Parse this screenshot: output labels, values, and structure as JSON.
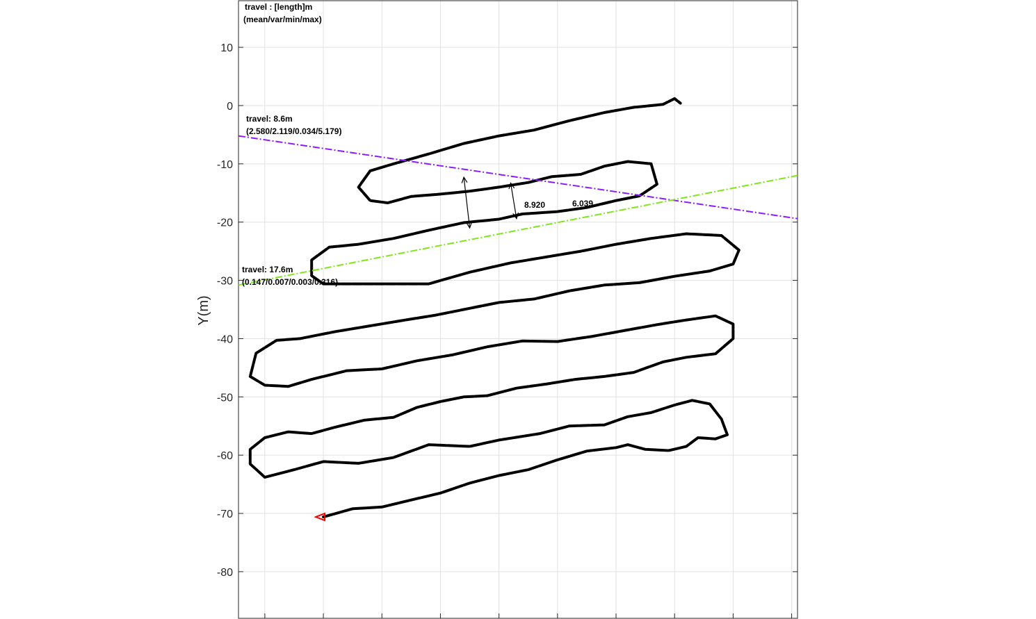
{
  "chart_data": {
    "type": "line",
    "title": "",
    "xlabel": "",
    "ylabel": "Y(m)",
    "xlim": [
      -4.5,
      91
    ],
    "ylim": [
      -88,
      18
    ],
    "yticks": [
      10,
      0,
      -10,
      -20,
      -30,
      -40,
      -50,
      -60,
      -70,
      -80
    ],
    "xgrid": [
      0,
      10,
      20,
      30,
      40,
      50,
      60,
      70,
      80,
      90
    ],
    "grid": true,
    "legend": {
      "line1": "travel : [length]m",
      "line2": "(mean/var/min/max)",
      "position": "top-left"
    },
    "series": [
      {
        "color": "#000000",
        "style": "dotted-thick",
        "points": [
          [
            10,
            -70.6
          ],
          [
            15,
            -69.2
          ],
          [
            20,
            -68.9
          ],
          [
            25,
            -67.7
          ],
          [
            30,
            -66.5
          ],
          [
            35,
            -64.8
          ],
          [
            40,
            -63.5
          ],
          [
            45,
            -62.5
          ],
          [
            50,
            -60.8
          ],
          [
            55,
            -59.3
          ],
          [
            60,
            -58.7
          ],
          [
            62,
            -58.2
          ],
          [
            65,
            -59.0
          ],
          [
            69,
            -59.2
          ],
          [
            72,
            -58.5
          ],
          [
            74,
            -57.0
          ],
          [
            77,
            -57.2
          ],
          [
            79,
            -56.5
          ],
          [
            78,
            -53.8
          ],
          [
            76,
            -51.2
          ],
          [
            73,
            -50.6
          ],
          [
            70,
            -51.4
          ],
          [
            66,
            -52.7
          ],
          [
            62,
            -53.4
          ],
          [
            58,
            -54.8
          ],
          [
            52,
            -55.0
          ],
          [
            47,
            -56.3
          ],
          [
            40,
            -57.4
          ],
          [
            35,
            -58.5
          ],
          [
            28,
            -58.2
          ],
          [
            22,
            -60.4
          ],
          [
            16,
            -61.4
          ],
          [
            10,
            -61.1
          ],
          [
            5,
            -62.5
          ],
          [
            0,
            -63.8
          ],
          [
            -2.5,
            -61.5
          ],
          [
            -2.5,
            -59.0
          ],
          [
            0,
            -57.0
          ],
          [
            4,
            -56.0
          ],
          [
            8,
            -56.3
          ],
          [
            12,
            -55.2
          ],
          [
            17,
            -54.0
          ],
          [
            22,
            -53.5
          ],
          [
            26,
            -51.8
          ],
          [
            30,
            -50.8
          ],
          [
            34,
            -50.0
          ],
          [
            38,
            -49.8
          ],
          [
            43,
            -48.5
          ],
          [
            48,
            -47.8
          ],
          [
            53,
            -47.0
          ],
          [
            58,
            -46.5
          ],
          [
            63,
            -45.8
          ],
          [
            68,
            -44.0
          ],
          [
            72,
            -43.2
          ],
          [
            77,
            -42.6
          ],
          [
            80,
            -40.0
          ],
          [
            80,
            -37.5
          ],
          [
            77,
            -36.1
          ],
          [
            72,
            -36.8
          ],
          [
            67,
            -37.6
          ],
          [
            62,
            -38.5
          ],
          [
            56,
            -39.6
          ],
          [
            50,
            -40.5
          ],
          [
            44,
            -40.4
          ],
          [
            38,
            -41.4
          ],
          [
            32,
            -42.8
          ],
          [
            26,
            -43.8
          ],
          [
            20,
            -45.2
          ],
          [
            14,
            -45.5
          ],
          [
            8,
            -47.0
          ],
          [
            4,
            -48.2
          ],
          [
            0,
            -48.0
          ],
          [
            -2.5,
            -46.5
          ],
          [
            -1.5,
            -42.5
          ],
          [
            2,
            -40.3
          ],
          [
            6,
            -40.0
          ],
          [
            12,
            -38.8
          ],
          [
            18,
            -37.8
          ],
          [
            24,
            -36.8
          ],
          [
            29,
            -36.0
          ],
          [
            35,
            -34.8
          ],
          [
            40,
            -33.8
          ],
          [
            46,
            -33.2
          ],
          [
            52,
            -31.8
          ],
          [
            58,
            -30.8
          ],
          [
            64,
            -30.4
          ],
          [
            70,
            -29.3
          ],
          [
            76,
            -28.4
          ],
          [
            80,
            -27.2
          ],
          [
            81,
            -24.8
          ],
          [
            78,
            -22.3
          ],
          [
            72,
            -22.0
          ],
          [
            66,
            -22.8
          ],
          [
            60,
            -23.8
          ],
          [
            54,
            -25.0
          ],
          [
            48,
            -26.0
          ],
          [
            42,
            -27.0
          ],
          [
            35,
            -28.6
          ],
          [
            28,
            -30.6
          ],
          [
            22,
            -30.6
          ],
          [
            16,
            -30.6
          ],
          [
            10,
            -30.6
          ],
          [
            8,
            -29.2
          ],
          [
            8,
            -26.5
          ],
          [
            11,
            -24.3
          ],
          [
            16,
            -23.8
          ],
          [
            22,
            -22.8
          ],
          [
            28,
            -21.4
          ],
          [
            34,
            -20.1
          ],
          [
            40,
            -19.5
          ],
          [
            44,
            -18.6
          ],
          [
            50,
            -18.2
          ],
          [
            55,
            -17.5
          ],
          [
            60,
            -16.3
          ],
          [
            64,
            -15.5
          ],
          [
            67,
            -13.5
          ],
          [
            66,
            -10.0
          ],
          [
            62,
            -9.6
          ],
          [
            58,
            -10.4
          ],
          [
            54,
            -11.8
          ],
          [
            49,
            -12.2
          ],
          [
            45,
            -13.2
          ],
          [
            40,
            -14.0
          ],
          [
            35,
            -14.7
          ],
          [
            30,
            -15.2
          ],
          [
            25,
            -15.6
          ],
          [
            21,
            -16.7
          ],
          [
            18,
            -16.3
          ],
          [
            16,
            -14.0
          ],
          [
            18,
            -11.2
          ],
          [
            22,
            -10.0
          ],
          [
            28,
            -8.3
          ],
          [
            34,
            -6.5
          ],
          [
            40,
            -5.2
          ],
          [
            46,
            -4.2
          ],
          [
            52,
            -2.6
          ],
          [
            58,
            -1.2
          ],
          [
            63,
            -0.3
          ],
          [
            68,
            0.2
          ],
          [
            70,
            1.2
          ],
          [
            71,
            0.4
          ]
        ]
      },
      {
        "color": "#ff0000",
        "style": "marker-start",
        "points": [
          [
            10,
            -70.6
          ]
        ]
      },
      {
        "name": "travel: 8.6m",
        "color": "#8c1aff",
        "style": "dashdot",
        "points": [
          [
            -4.5,
            -5.2
          ],
          [
            91,
            -19.4
          ]
        ]
      },
      {
        "name": "travel: 17.6m",
        "color": "#7fe619",
        "style": "dashdot",
        "points": [
          [
            -4.5,
            -30.8
          ],
          [
            91,
            -12.0
          ]
        ]
      }
    ],
    "annotations": [
      {
        "id": "purple-stats",
        "line1": "travel: 8.6m",
        "line2": "(2.580/2.119/0.034/5.179)"
      },
      {
        "id": "green-stats",
        "line1": "travel: 17.6m",
        "line2": "(0.147/0.007/0.003/0.316)"
      },
      {
        "id": "dist-1",
        "text": "8.920",
        "from": [
          34,
          -12.3
        ],
        "to": [
          35,
          -21.0
        ]
      },
      {
        "id": "dist-2",
        "text": "6.039",
        "from": [
          42,
          -13.3
        ],
        "to": [
          43,
          -19.4
        ]
      }
    ]
  }
}
